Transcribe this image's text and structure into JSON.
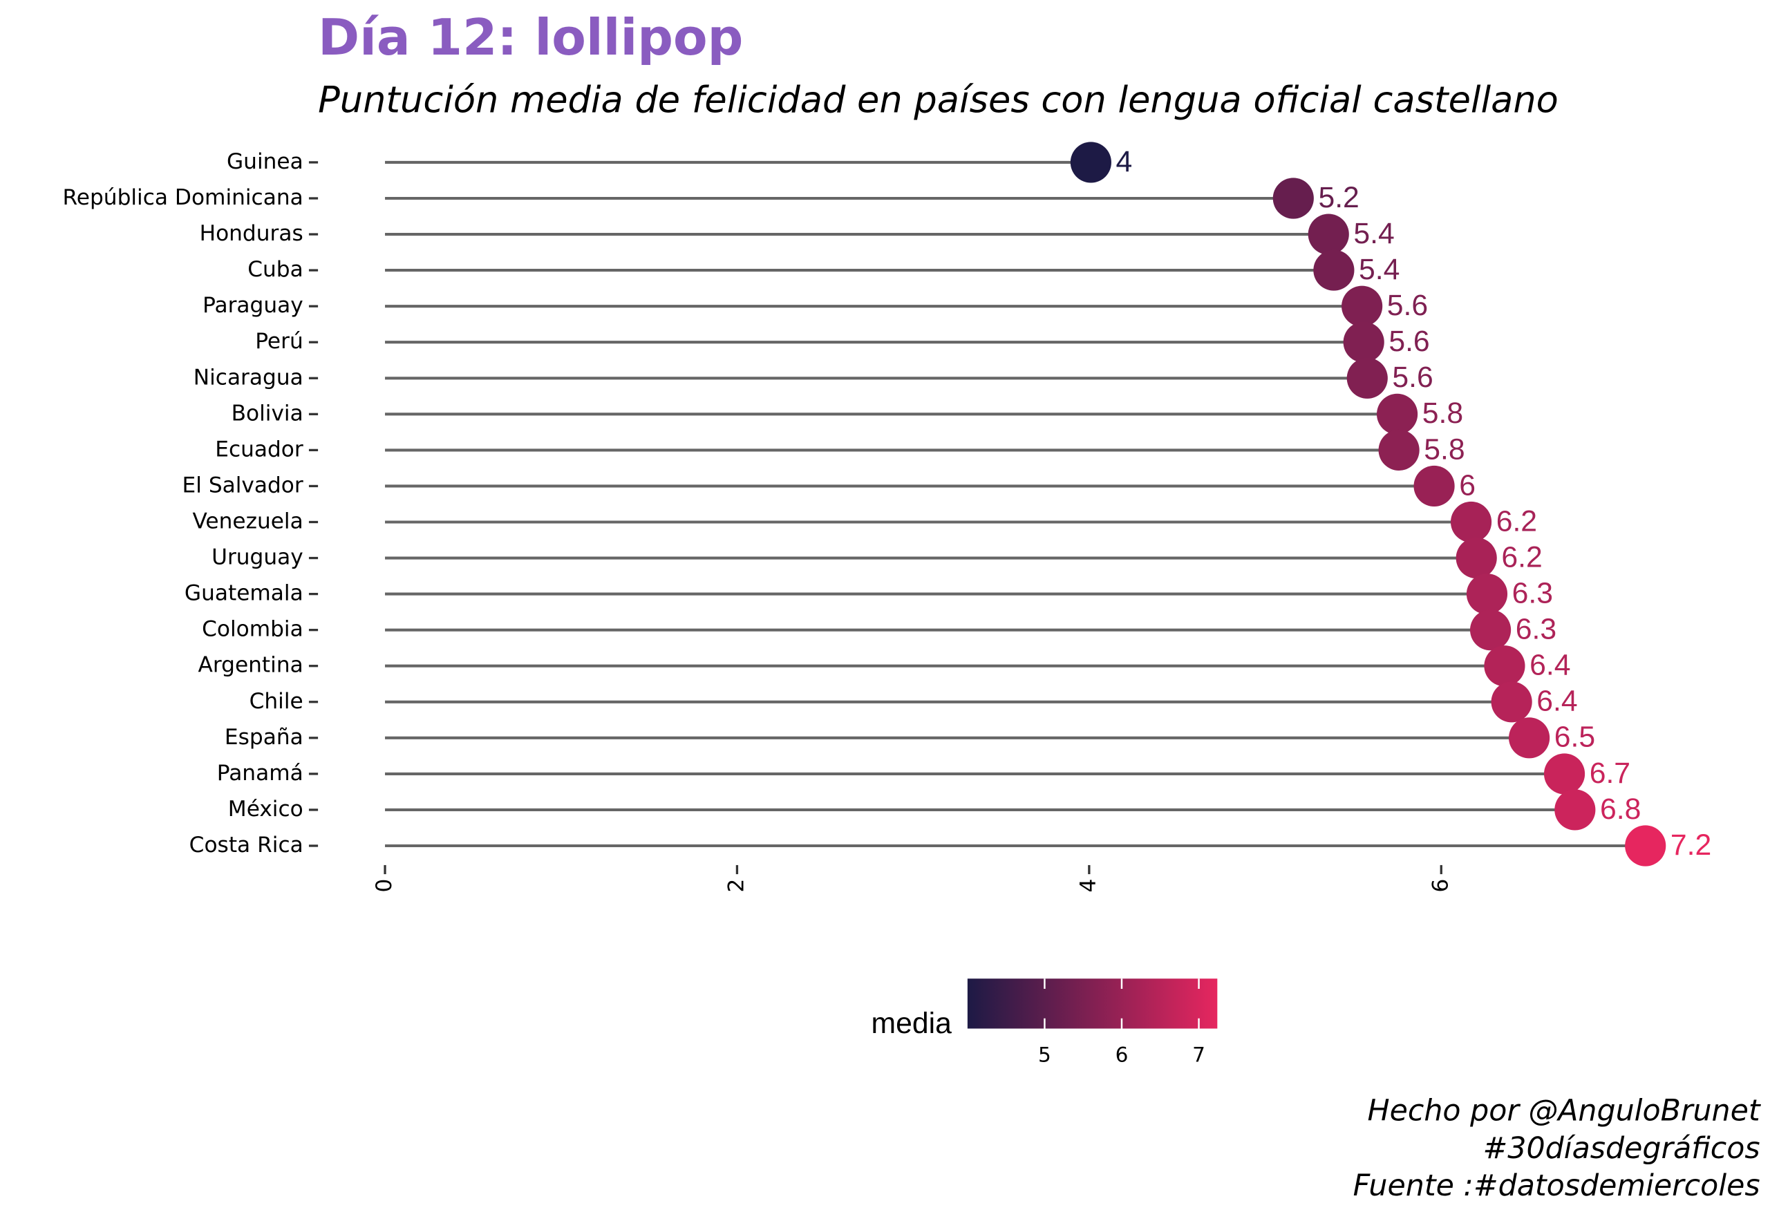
{
  "chart_data": {
    "type": "lollipop",
    "title": "Día 12: lollipop",
    "subtitle": "Puntución media de felicidad en países con lengua oficial castellano",
    "categories": [
      "Guinea",
      "República Dominicana",
      "Honduras",
      "Cuba",
      "Paraguay",
      "Perú",
      "Nicaragua",
      "Bolivia",
      "Ecuador",
      "El Salvador",
      "Venezuela",
      "Uruguay",
      "Guatemala",
      "Colombia",
      "Argentina",
      "Chile",
      "España",
      "Panamá",
      "México",
      "Costa Rica"
    ],
    "values": [
      4.01,
      5.16,
      5.36,
      5.39,
      5.55,
      5.56,
      5.58,
      5.75,
      5.76,
      5.96,
      6.17,
      6.2,
      6.26,
      6.28,
      6.36,
      6.4,
      6.5,
      6.7,
      6.76,
      7.16
    ],
    "value_labels": [
      "4",
      "5.2",
      "5.4",
      "5.4",
      "5.6",
      "5.6",
      "5.6",
      "5.8",
      "5.8",
      "6",
      "6.2",
      "6.2",
      "6.3",
      "6.3",
      "6.4",
      "6.4",
      "6.5",
      "6.7",
      "6.8",
      "7.2"
    ],
    "xlim": [
      0,
      7.16
    ],
    "xticks": [
      0,
      2,
      4,
      6
    ],
    "color_low": "#1d1a45",
    "color_high": "#e6265f",
    "line_color": "#666666",
    "legend_title": "media",
    "color_lim": [
      4,
      7.24
    ],
    "color_ticks": [
      5,
      6,
      7
    ],
    "caption": [
      "Hecho por @AnguloBrunet",
      "#30díasdegráficos",
      "Fuente :#datosdemiercoles"
    ]
  }
}
